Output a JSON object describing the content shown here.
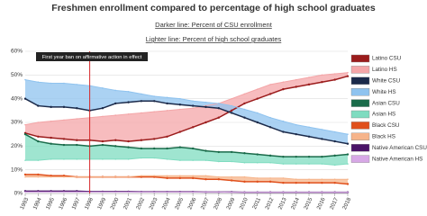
{
  "chart_data": {
    "type": "line",
    "title": "Freshmen enrollment compared to percentage of high school graduates",
    "subtitles": [
      "Darker line: Percent of CSU enrollment",
      "Lighter line: Percent of high school graduates"
    ],
    "annotation": {
      "text": "First year ban on affirmative action in effect",
      "x": 1998,
      "color": "#d62728"
    },
    "x": [
      1993,
      1994,
      1995,
      1996,
      1997,
      1998,
      1999,
      2000,
      2001,
      2002,
      2003,
      2004,
      2005,
      2006,
      2007,
      2008,
      2009,
      2010,
      2011,
      2012,
      2013,
      2014,
      2015,
      2016,
      2017,
      2018
    ],
    "xlim": [
      1993,
      2018
    ],
    "xticks": [
      1993,
      1994,
      1995,
      1996,
      1997,
      1998,
      1999,
      2000,
      2001,
      2002,
      2003,
      2004,
      2005,
      2006,
      2007,
      2008,
      2009,
      2010,
      2011,
      2012,
      2013,
      2014,
      2015,
      2016,
      2017,
      2018
    ],
    "ylim": [
      0,
      60
    ],
    "yticks": [
      {
        "value": 0,
        "label": "0%"
      },
      {
        "value": 10,
        "label": "10%"
      },
      {
        "value": 20,
        "label": "20%"
      },
      {
        "value": 30,
        "label": "30%"
      },
      {
        "value": 40,
        "label": "40%"
      },
      {
        "value": 50,
        "label": "50%"
      },
      {
        "value": 60,
        "label": "60%"
      }
    ],
    "grid": true,
    "legend": "right",
    "series": [
      {
        "name": "Latino CSU",
        "color": "#9b1c1c",
        "values": [
          25.5,
          24,
          23.5,
          23,
          22.5,
          22.5,
          22,
          22.5,
          22,
          22.5,
          23,
          24,
          26,
          28,
          30,
          32,
          35,
          38,
          40,
          42,
          44,
          45,
          46,
          47,
          48,
          49.5
        ]
      },
      {
        "name": "Latino HS",
        "color": "#f4a6a8",
        "values": [
          29,
          30,
          30.5,
          31,
          31.5,
          32,
          32.5,
          33,
          33.5,
          34,
          34.5,
          35,
          35.5,
          36,
          37,
          38,
          40,
          42,
          44,
          46,
          47,
          48,
          49,
          50,
          50.5,
          51
        ]
      },
      {
        "name": "White CSU",
        "color": "#1b2a4a",
        "values": [
          40,
          37,
          36.5,
          36.5,
          36,
          35,
          36,
          38,
          38.5,
          39,
          39,
          38,
          37.5,
          37,
          36.5,
          36,
          34,
          32,
          30,
          28,
          26,
          25,
          24,
          23,
          22,
          21
        ]
      },
      {
        "name": "White HS",
        "color": "#8fc3ef",
        "values": [
          48,
          47,
          46.5,
          46.5,
          46,
          45.5,
          44.5,
          43.5,
          43,
          42,
          41,
          40.5,
          40,
          39,
          38.5,
          38,
          37,
          35.5,
          34,
          32,
          30.5,
          29,
          28,
          27,
          26,
          25
        ]
      },
      {
        "name": "Asian CSU",
        "color": "#1a6b4a",
        "values": [
          25,
          22,
          21,
          20.5,
          20.5,
          20,
          20.5,
          20,
          19.5,
          19,
          19,
          19,
          19.5,
          19,
          18,
          17.5,
          17.5,
          17,
          16.5,
          16,
          15.5,
          15.5,
          15.5,
          15.5,
          16,
          16.5
        ]
      },
      {
        "name": "Asian HS",
        "color": "#7fdcc0",
        "values": [
          14,
          14,
          14.5,
          14.5,
          14.5,
          14.5,
          14.5,
          14.5,
          14.5,
          15,
          15,
          14.5,
          14,
          14,
          14,
          13.5,
          13.5,
          13,
          13,
          13,
          12.5,
          12.5,
          12.5,
          12.5,
          12,
          12.5
        ]
      },
      {
        "name": "Black CSU",
        "color": "#e0501c",
        "values": [
          8,
          8,
          7.5,
          7.5,
          7,
          7,
          7,
          7,
          7,
          7,
          7,
          6.5,
          6.5,
          6.5,
          6,
          6,
          5.5,
          5,
          5,
          5,
          4.5,
          4.5,
          4.5,
          4.5,
          4.5,
          4
        ]
      },
      {
        "name": "Black HS",
        "color": "#f6b48a",
        "values": [
          7,
          7,
          7,
          7,
          7,
          7,
          7,
          7,
          7,
          7.5,
          7.5,
          7.5,
          7.5,
          7.5,
          7.5,
          7,
          7,
          7,
          6.5,
          6.5,
          6.5,
          6,
          6,
          6,
          6,
          6
        ]
      },
      {
        "name": "Native American CSU",
        "color": "#4b1468",
        "values": [
          1,
          1,
          1,
          1,
          1,
          0.8,
          0.8,
          0.8,
          0.8,
          0.7,
          0.7,
          0.7,
          0.7,
          0.7,
          0.6,
          0.6,
          0.6,
          0.5,
          0.5,
          0.5,
          0.5,
          0.5,
          0.5,
          0.5,
          0.5,
          0.5
        ]
      },
      {
        "name": "Native American HS",
        "color": "#d7a8e6",
        "values": [
          0.6,
          0.6,
          0.6,
          0.6,
          0.6,
          0.6,
          0.6,
          0.6,
          0.6,
          0.6,
          0.6,
          0.6,
          0.6,
          0.6,
          0.6,
          0.6,
          0.5,
          0.5,
          0.5,
          0.5,
          0.5,
          0.5,
          0.5,
          0.5,
          0.5,
          0.5
        ]
      }
    ]
  }
}
